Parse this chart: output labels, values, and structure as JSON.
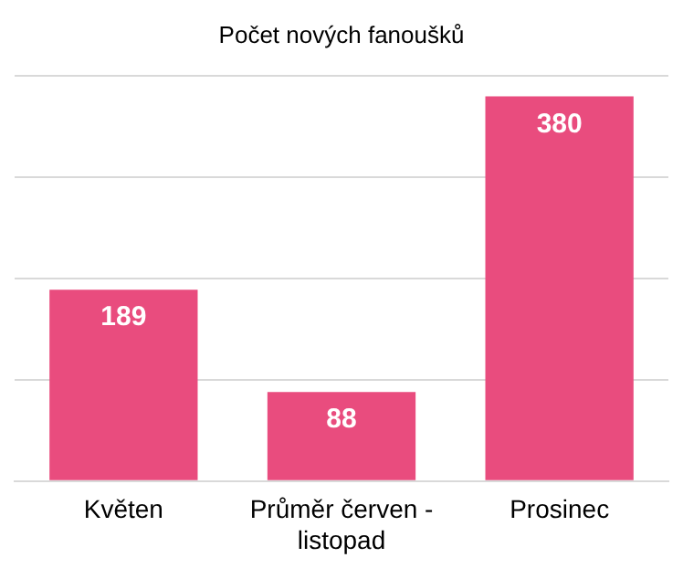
{
  "chart_data": {
    "type": "bar",
    "title": "Počet nových fanoušků",
    "categories": [
      "Květen",
      "Průměr červen - listopad",
      "Prosinec"
    ],
    "values": [
      189,
      88,
      380
    ],
    "color": "#e94c7e",
    "ylim": [
      0,
      400
    ],
    "yticks": [
      {
        "value": 0,
        "label": null
      },
      {
        "value": 100,
        "label": null
      },
      {
        "value": 200,
        "label": null
      },
      {
        "value": 300,
        "label": null
      },
      {
        "value": 400,
        "label": null
      }
    ],
    "grid": "y",
    "tick_labels": "x",
    "data_labels": true
  }
}
